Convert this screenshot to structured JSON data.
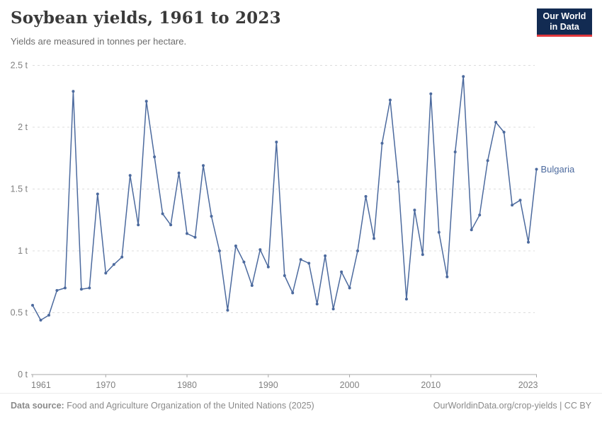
{
  "header": {
    "title": "Soybean yields, 1961 to 2023",
    "subtitle": "Yields are measured in tonnes per hectare.",
    "logo": {
      "line1": "Our World",
      "line2": "in Data",
      "bg_color": "#122b52",
      "accent_color": "#e0373c"
    }
  },
  "chart_data": {
    "type": "line",
    "title": "Soybean yields, 1961 to 2023",
    "ylabel": "tonnes per hectare",
    "xlabel": "",
    "xlim": [
      1961,
      2023
    ],
    "ylim": [
      0,
      2.5
    ],
    "grid": "horizontal-dashed",
    "legend_position": "end-of-line-label",
    "x_ticks": [
      {
        "value": 1961,
        "label": "1961"
      },
      {
        "value": 1970,
        "label": "1970"
      },
      {
        "value": 1980,
        "label": "1980"
      },
      {
        "value": 1990,
        "label": "1990"
      },
      {
        "value": 2000,
        "label": "2000"
      },
      {
        "value": 2010,
        "label": "2010"
      },
      {
        "value": 2023,
        "label": "2023"
      }
    ],
    "y_ticks": [
      {
        "value": 0,
        "label": "0 t"
      },
      {
        "value": 0.5,
        "label": "0.5 t"
      },
      {
        "value": 1,
        "label": "1 t"
      },
      {
        "value": 1.5,
        "label": "1.5 t"
      },
      {
        "value": 2,
        "label": "2 t"
      },
      {
        "value": 2.5,
        "label": "2.5 t"
      }
    ],
    "series": [
      {
        "name": "Bulgaria",
        "color": "#4c6a9e",
        "x": [
          1961,
          1962,
          1963,
          1964,
          1965,
          1966,
          1967,
          1968,
          1969,
          1970,
          1971,
          1972,
          1973,
          1974,
          1975,
          1976,
          1977,
          1978,
          1979,
          1980,
          1981,
          1982,
          1983,
          1984,
          1985,
          1986,
          1987,
          1988,
          1989,
          1990,
          1991,
          1992,
          1993,
          1994,
          1995,
          1996,
          1997,
          1998,
          1999,
          2000,
          2001,
          2002,
          2003,
          2004,
          2005,
          2006,
          2007,
          2008,
          2009,
          2010,
          2011,
          2012,
          2013,
          2014,
          2015,
          2016,
          2017,
          2018,
          2019,
          2020,
          2021,
          2022,
          2023
        ],
        "values": [
          0.56,
          0.44,
          0.48,
          0.68,
          0.7,
          2.29,
          0.69,
          0.7,
          1.46,
          0.82,
          0.89,
          0.95,
          1.61,
          1.21,
          2.21,
          1.76,
          1.3,
          1.21,
          1.63,
          1.14,
          1.11,
          1.69,
          1.28,
          1.0,
          0.52,
          1.04,
          0.91,
          0.72,
          1.01,
          0.87,
          1.88,
          0.8,
          0.66,
          0.93,
          0.9,
          0.57,
          0.96,
          0.53,
          0.83,
          0.7,
          1.0,
          1.44,
          1.1,
          1.87,
          2.22,
          1.56,
          0.61,
          1.33,
          0.97,
          2.27,
          1.15,
          0.79,
          1.8,
          2.41,
          1.17,
          1.29,
          1.73,
          2.04,
          1.96,
          1.37,
          1.41,
          1.07,
          1.66
        ]
      }
    ]
  },
  "footer": {
    "source_label": "Data source:",
    "source_text": " Food and Agriculture Organization of the United Nations (2025)",
    "link_text": "OurWorldinData.org/crop-yields | CC BY"
  }
}
